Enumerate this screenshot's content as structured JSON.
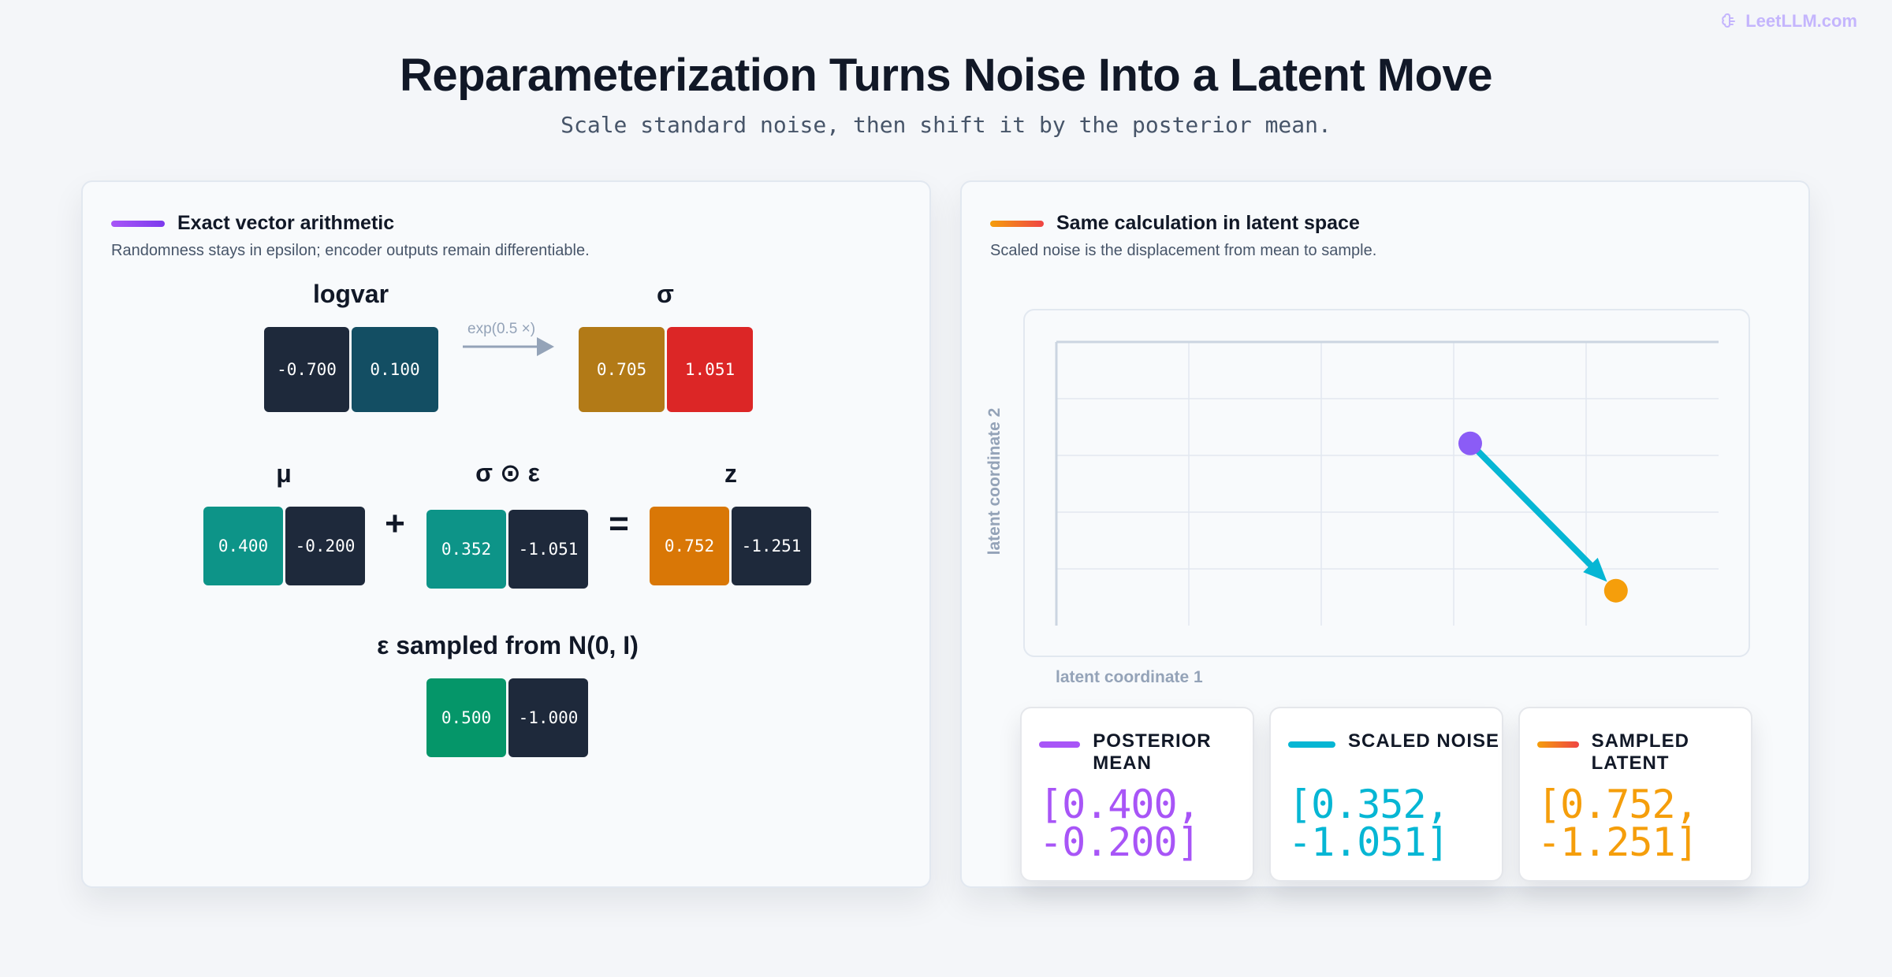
{
  "brand": {
    "text": "LeetLLM.com",
    "icon": "brain-icon"
  },
  "header": {
    "title": "Reparameterization Turns Noise Into a Latent Move",
    "subtitle": "Scale standard noise, then shift it by the posterior mean."
  },
  "left_panel": {
    "title": "Exact vector arithmetic",
    "description": "Randomness stays in epsilon; encoder outputs remain differentiable.",
    "logvar": {
      "label": "logvar",
      "values": [
        "-0.700",
        "0.100"
      ]
    },
    "transform_label": "exp(0.5 ×)",
    "sigma": {
      "label": "σ",
      "values": [
        "0.705",
        "1.051"
      ]
    },
    "mu": {
      "label": "μ",
      "values": [
        "0.400",
        "-0.200"
      ]
    },
    "plus": "+",
    "scaled": {
      "label": "σ ⊙ ε",
      "values": [
        "0.352",
        "-1.051"
      ]
    },
    "equals": "=",
    "z": {
      "label": "z",
      "values": [
        "0.752",
        "-1.251"
      ]
    },
    "epsilon": {
      "label": "ε sampled from N(0, I)",
      "values": [
        "0.500",
        "-1.000"
      ]
    },
    "colors": {
      "dark": "#1e293b",
      "teal_dark": "#134e63",
      "gold": "#b27a17",
      "red": "#dc2626",
      "teal": "#0d9488",
      "green": "#059669",
      "orange": "#d97706"
    }
  },
  "right_panel": {
    "title": "Same calculation in latent space",
    "description": "Scaled noise is the displacement from mean to sample.",
    "chart_data": {
      "type": "scatter",
      "xlabel": "latent coordinate 1",
      "ylabel": "latent coordinate 2",
      "xlim": [
        -0.6,
        1.0
      ],
      "ylim": [
        -1.5,
        0.4
      ],
      "points": [
        {
          "name": "posterior mean",
          "x": 0.4,
          "y": -0.2,
          "color": "#8b5cf6"
        },
        {
          "name": "sampled latent",
          "x": 0.752,
          "y": -1.251,
          "color": "#f59e0b"
        }
      ],
      "arrow": {
        "from": [
          0.4,
          -0.2
        ],
        "to": [
          0.752,
          -1.251
        ],
        "color": "#06b6d4"
      },
      "grid": true
    },
    "cards": [
      {
        "title": "POSTERIOR MEAN",
        "value": "[0.400, -0.200]",
        "color": "#a855f7"
      },
      {
        "title": "SCALED NOISE",
        "value": "[0.352, -1.051]",
        "color": "#06b6d4"
      },
      {
        "title": "SAMPLED LATENT",
        "value": "[0.752, -1.251]",
        "color": "#f59e0b"
      }
    ]
  }
}
